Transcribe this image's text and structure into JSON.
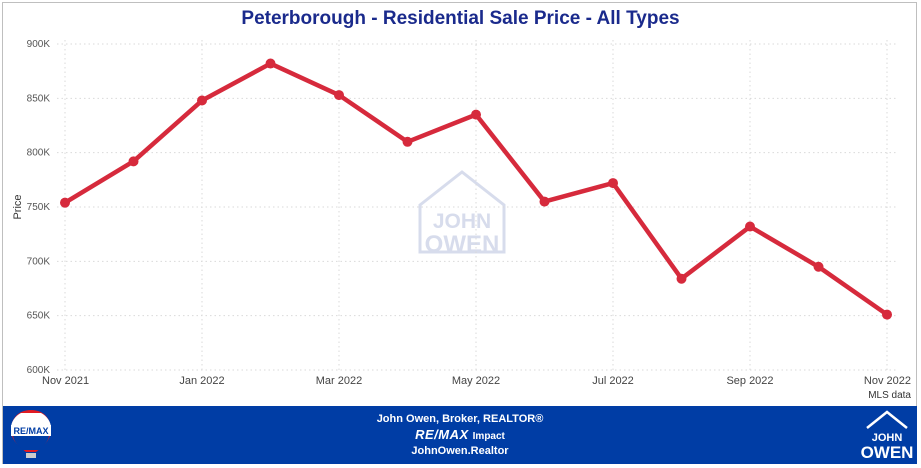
{
  "header": {
    "title": "Peterborough - Residential Sale Price - All Types"
  },
  "watermark": {
    "line1": "JOHN",
    "line2": "OWEN"
  },
  "chart_data": {
    "type": "line",
    "title": "Peterborough - Residential Sale Price - All Types",
    "xlabel": "",
    "ylabel": "Price",
    "note": "MLS data",
    "ylim": [
      600000,
      900000
    ],
    "y_ticks": [
      600000,
      650000,
      700000,
      750000,
      800000,
      850000,
      900000
    ],
    "y_tick_labels": [
      "600K",
      "650K",
      "700K",
      "750K",
      "800K",
      "850K",
      "900K"
    ],
    "x": [
      "Nov 2021",
      "Dec 2021",
      "Jan 2022",
      "Feb 2022",
      "Mar 2022",
      "Apr 2022",
      "May 2022",
      "Jun 2022",
      "Jul 2022",
      "Aug 2022",
      "Sep 2022",
      "Oct 2022",
      "Nov 2022"
    ],
    "x_tick_labels": [
      "Nov 2021",
      "Jan 2022",
      "Mar 2022",
      "May 2022",
      "Jul 2022",
      "Sep 2022",
      "Nov 2022"
    ],
    "x_tick_indices": [
      0,
      2,
      4,
      6,
      8,
      10,
      12
    ],
    "series": [
      {
        "values": [
          754000,
          792000,
          848000,
          882000,
          853000,
          810000,
          835000,
          755000,
          772000,
          684000,
          732000,
          695000,
          651000
        ],
        "color": "#d62a3c"
      }
    ],
    "grid": true,
    "gridline_color": "#d9d9d9"
  },
  "footer": {
    "line1": "John Owen, Broker, REALTOR®",
    "brand": "RE/MAX",
    "brand_sub": "Impact",
    "line3": "JohnOwen.Realtor",
    "left_logo": "RE/MAX",
    "right_logo_line1": "JOHN",
    "right_logo_line2": "OWEN",
    "background": "#003da5"
  }
}
